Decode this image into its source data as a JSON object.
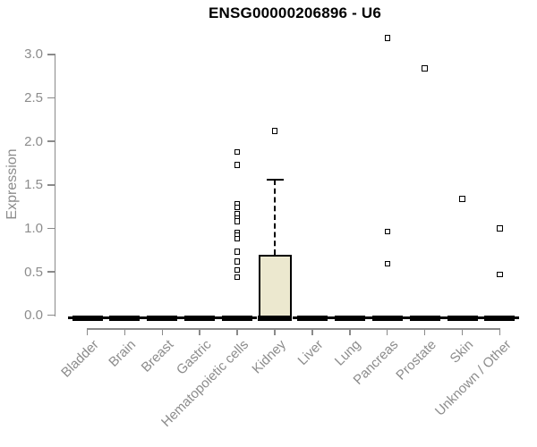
{
  "chart_data": {
    "type": "box",
    "title": "ENSG00000206896 - U6",
    "ylabel": "Expression",
    "xlabel": "",
    "ylim": [
      0,
      3.25
    ],
    "yticks": [
      0,
      0.5,
      1,
      1.5,
      2,
      2.5,
      3
    ],
    "grid": false,
    "legend": false,
    "categories": [
      "Bladder",
      "Brain",
      "Breast",
      "Gastric",
      "Hematopoietic cells",
      "Kidney",
      "Liver",
      "Lung",
      "Pancreas",
      "Prostate",
      "Skin",
      "Unknown / Other"
    ],
    "boxes": [
      {
        "category": "Bladder",
        "whisker_low": 0,
        "q1": 0,
        "median": 0,
        "q3": 0,
        "whisker_high": 0,
        "outliers": []
      },
      {
        "category": "Brain",
        "whisker_low": 0,
        "q1": 0,
        "median": 0,
        "q3": 0,
        "whisker_high": 0,
        "outliers": []
      },
      {
        "category": "Breast",
        "whisker_low": 0,
        "q1": 0,
        "median": 0,
        "q3": 0,
        "whisker_high": 0,
        "outliers": []
      },
      {
        "category": "Gastric",
        "whisker_low": 0,
        "q1": 0,
        "median": 0,
        "q3": 0,
        "whisker_high": 0,
        "outliers": []
      },
      {
        "category": "Hematopoietic cells",
        "whisker_low": 0,
        "q1": 0,
        "median": 0,
        "q3": 0,
        "whisker_high": 0,
        "outliers": [
          1.88,
          1.73,
          1.28,
          1.24,
          1.17,
          1.11,
          1.08,
          0.95,
          0.92,
          0.88,
          0.73,
          0.62,
          0.52,
          0.44
        ]
      },
      {
        "category": "Kidney",
        "whisker_low": 0,
        "q1": 0,
        "median": 0,
        "q3": 0.7,
        "whisker_high": 1.56,
        "outliers": [
          2.12
        ]
      },
      {
        "category": "Liver",
        "whisker_low": 0,
        "q1": 0,
        "median": 0,
        "q3": 0,
        "whisker_high": 0,
        "outliers": []
      },
      {
        "category": "Lung",
        "whisker_low": 0,
        "q1": 0,
        "median": 0,
        "q3": 0,
        "whisker_high": 0,
        "outliers": []
      },
      {
        "category": "Pancreas",
        "whisker_low": 0,
        "q1": 0,
        "median": 0,
        "q3": 0,
        "whisker_high": 0,
        "outliers": [
          3.19,
          0.96,
          0.59
        ]
      },
      {
        "category": "Prostate",
        "whisker_low": 0,
        "q1": 0,
        "median": 0,
        "q3": 0,
        "whisker_high": 0,
        "outliers": [
          2.84
        ]
      },
      {
        "category": "Skin",
        "whisker_low": 0,
        "q1": 0,
        "median": 0,
        "q3": 0,
        "whisker_high": 0,
        "outliers": [
          1.34
        ]
      },
      {
        "category": "Unknown / Other",
        "whisker_low": 0,
        "q1": 0,
        "median": 0,
        "q3": 0,
        "whisker_high": 0,
        "outliers": [
          1.0,
          0.47
        ]
      }
    ],
    "colors": {
      "box_fill": "#ece8cf",
      "box_border": "#000000",
      "median": "#000000",
      "axis": "#8a8a8a",
      "tick_label": "#8c8c8c",
      "title": "#000000",
      "background": "#ffffff"
    }
  }
}
